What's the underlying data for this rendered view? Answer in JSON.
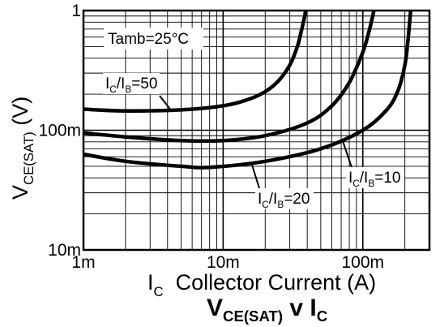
{
  "chart_data": {
    "type": "line",
    "title": {
      "main": "V",
      "main_sub": "CE(SAT)",
      "mid": " v I",
      "end_sub": "C"
    },
    "xlabel": {
      "symbol": "I",
      "symbol_sub": "C",
      "text": "  Collector Current (A)"
    },
    "ylabel": {
      "symbol": "V",
      "symbol_sub": "CE(SAT)",
      "unit": " (V)"
    },
    "xscale": "log",
    "yscale": "log",
    "xlim": [
      0.001,
      0.3
    ],
    "ylim": [
      0.01,
      1
    ],
    "grid": true,
    "x_ticks": [
      {
        "value": 0.001,
        "label": "1m"
      },
      {
        "value": 0.01,
        "label": "10m"
      },
      {
        "value": 0.1,
        "label": "100m"
      }
    ],
    "y_ticks": [
      {
        "value": 1,
        "label": "1"
      },
      {
        "value": 0.1,
        "label": "100m"
      },
      {
        "value": 0.01,
        "label": "10m"
      }
    ],
    "annotations": {
      "temperature": "Tamb=25°C",
      "series_labels": [
        {
          "pre": "I",
          "pre_sub": "C",
          "mid": "/I",
          "mid_sub": "B",
          "post": "=50"
        },
        {
          "pre": "I",
          "pre_sub": "C",
          "mid": "/I",
          "mid_sub": "B",
          "post": "=20"
        },
        {
          "pre": "I",
          "pre_sub": "C",
          "mid": "/I",
          "mid_sub": "B",
          "post": "=10"
        }
      ]
    },
    "series": [
      {
        "label_ref": 0,
        "x": [
          0.001,
          0.002,
          0.005,
          0.01,
          0.015,
          0.02,
          0.025,
          0.03,
          0.034,
          0.036,
          0.038,
          0.039
        ],
        "y": [
          0.15,
          0.145,
          0.148,
          0.16,
          0.18,
          0.21,
          0.26,
          0.35,
          0.5,
          0.65,
          0.85,
          1.0
        ]
      },
      {
        "label_ref": 1,
        "x": [
          0.001,
          0.002,
          0.005,
          0.01,
          0.02,
          0.04,
          0.06,
          0.08,
          0.1,
          0.11,
          0.115,
          0.12
        ],
        "y": [
          0.095,
          0.088,
          0.082,
          0.082,
          0.09,
          0.115,
          0.16,
          0.25,
          0.45,
          0.65,
          0.8,
          1.0
        ]
      },
      {
        "label_ref": 2,
        "x": [
          0.001,
          0.002,
          0.005,
          0.008,
          0.02,
          0.05,
          0.1,
          0.15,
          0.18,
          0.2,
          0.21,
          0.22
        ],
        "y": [
          0.063,
          0.055,
          0.05,
          0.049,
          0.055,
          0.07,
          0.1,
          0.15,
          0.22,
          0.35,
          0.55,
          1.0
        ]
      }
    ]
  }
}
